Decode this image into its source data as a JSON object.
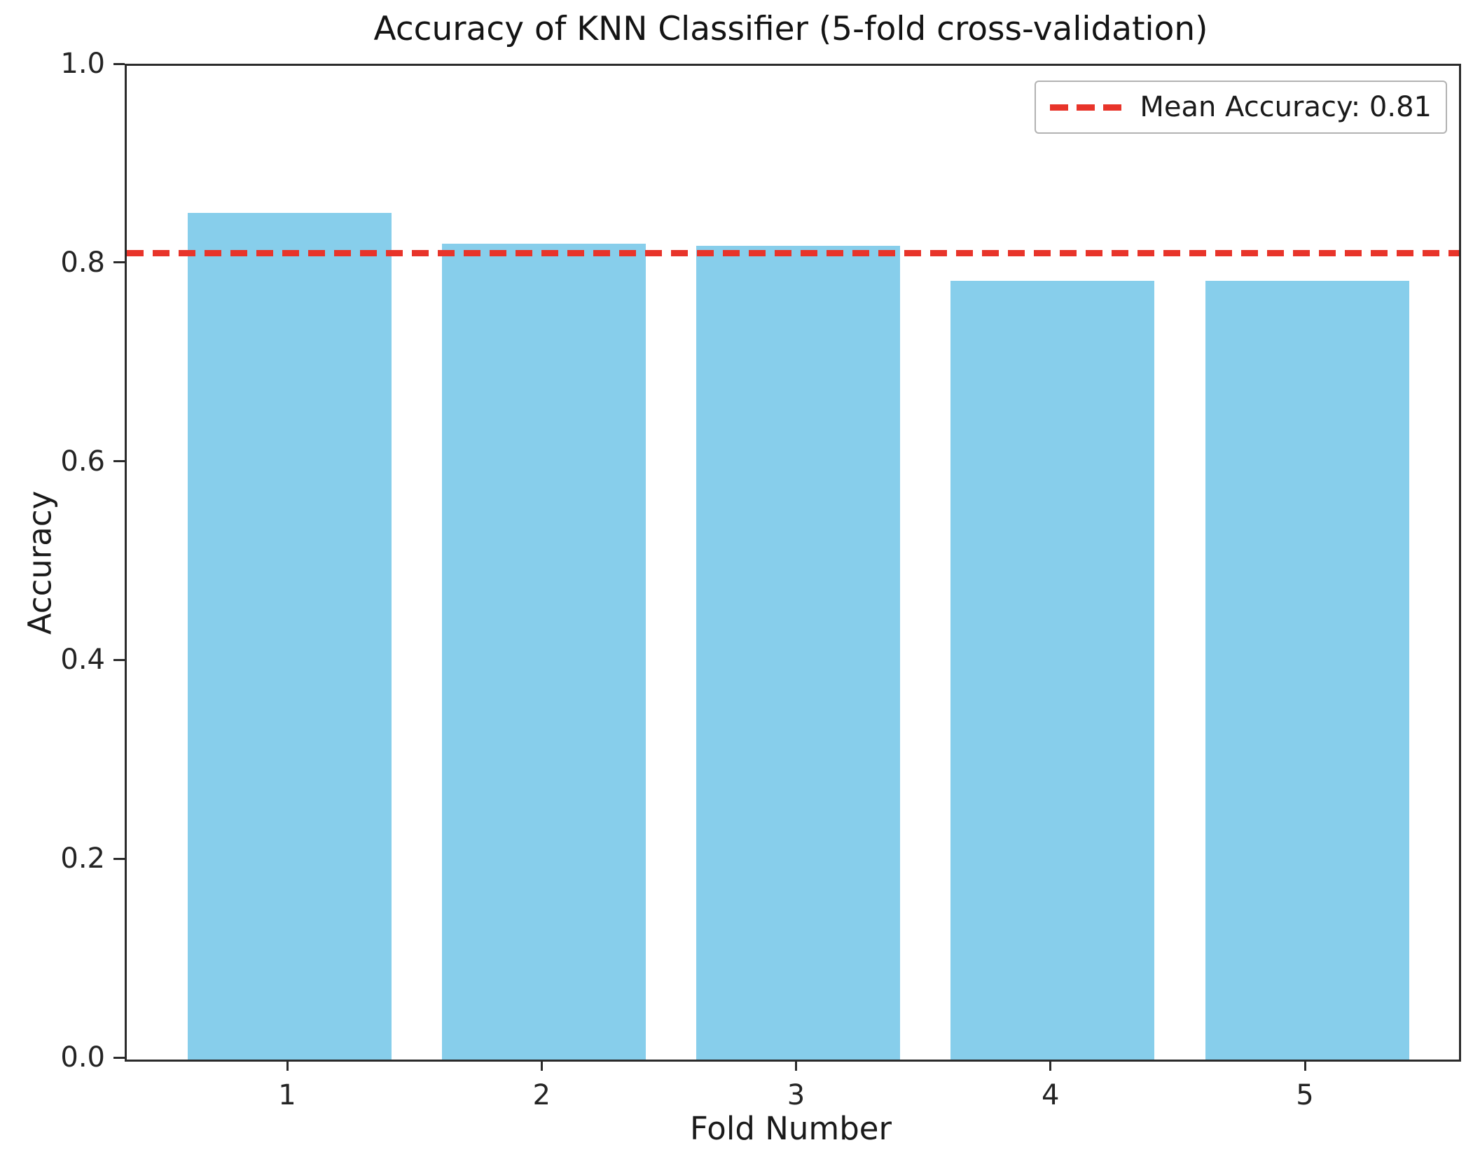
{
  "chart_data": {
    "type": "bar",
    "title": "Accuracy of KNN Classifier (5-fold cross-validation)",
    "xlabel": "Fold Number",
    "ylabel": "Accuracy",
    "categories": [
      "1",
      "2",
      "3",
      "4",
      "5"
    ],
    "values": [
      0.852,
      0.821,
      0.819,
      0.784,
      0.784
    ],
    "ylim": [
      0.0,
      1.0
    ],
    "yticks": [
      {
        "label": "1.0",
        "value": 1.0
      },
      {
        "label": "0.8",
        "value": 0.8
      },
      {
        "label": "0.6",
        "value": 0.6
      },
      {
        "label": "0.4",
        "value": 0.4
      },
      {
        "label": "0.2",
        "value": 0.2
      },
      {
        "label": "0.0",
        "value": 0.0
      }
    ],
    "mean_line": {
      "value": 0.812,
      "label": "Mean Accuracy: 0.81",
      "style": "dashed"
    },
    "bar_color": "#87CEEB",
    "mean_line_color": "#e8342a",
    "legend_position": "upper right",
    "grid": false
  }
}
